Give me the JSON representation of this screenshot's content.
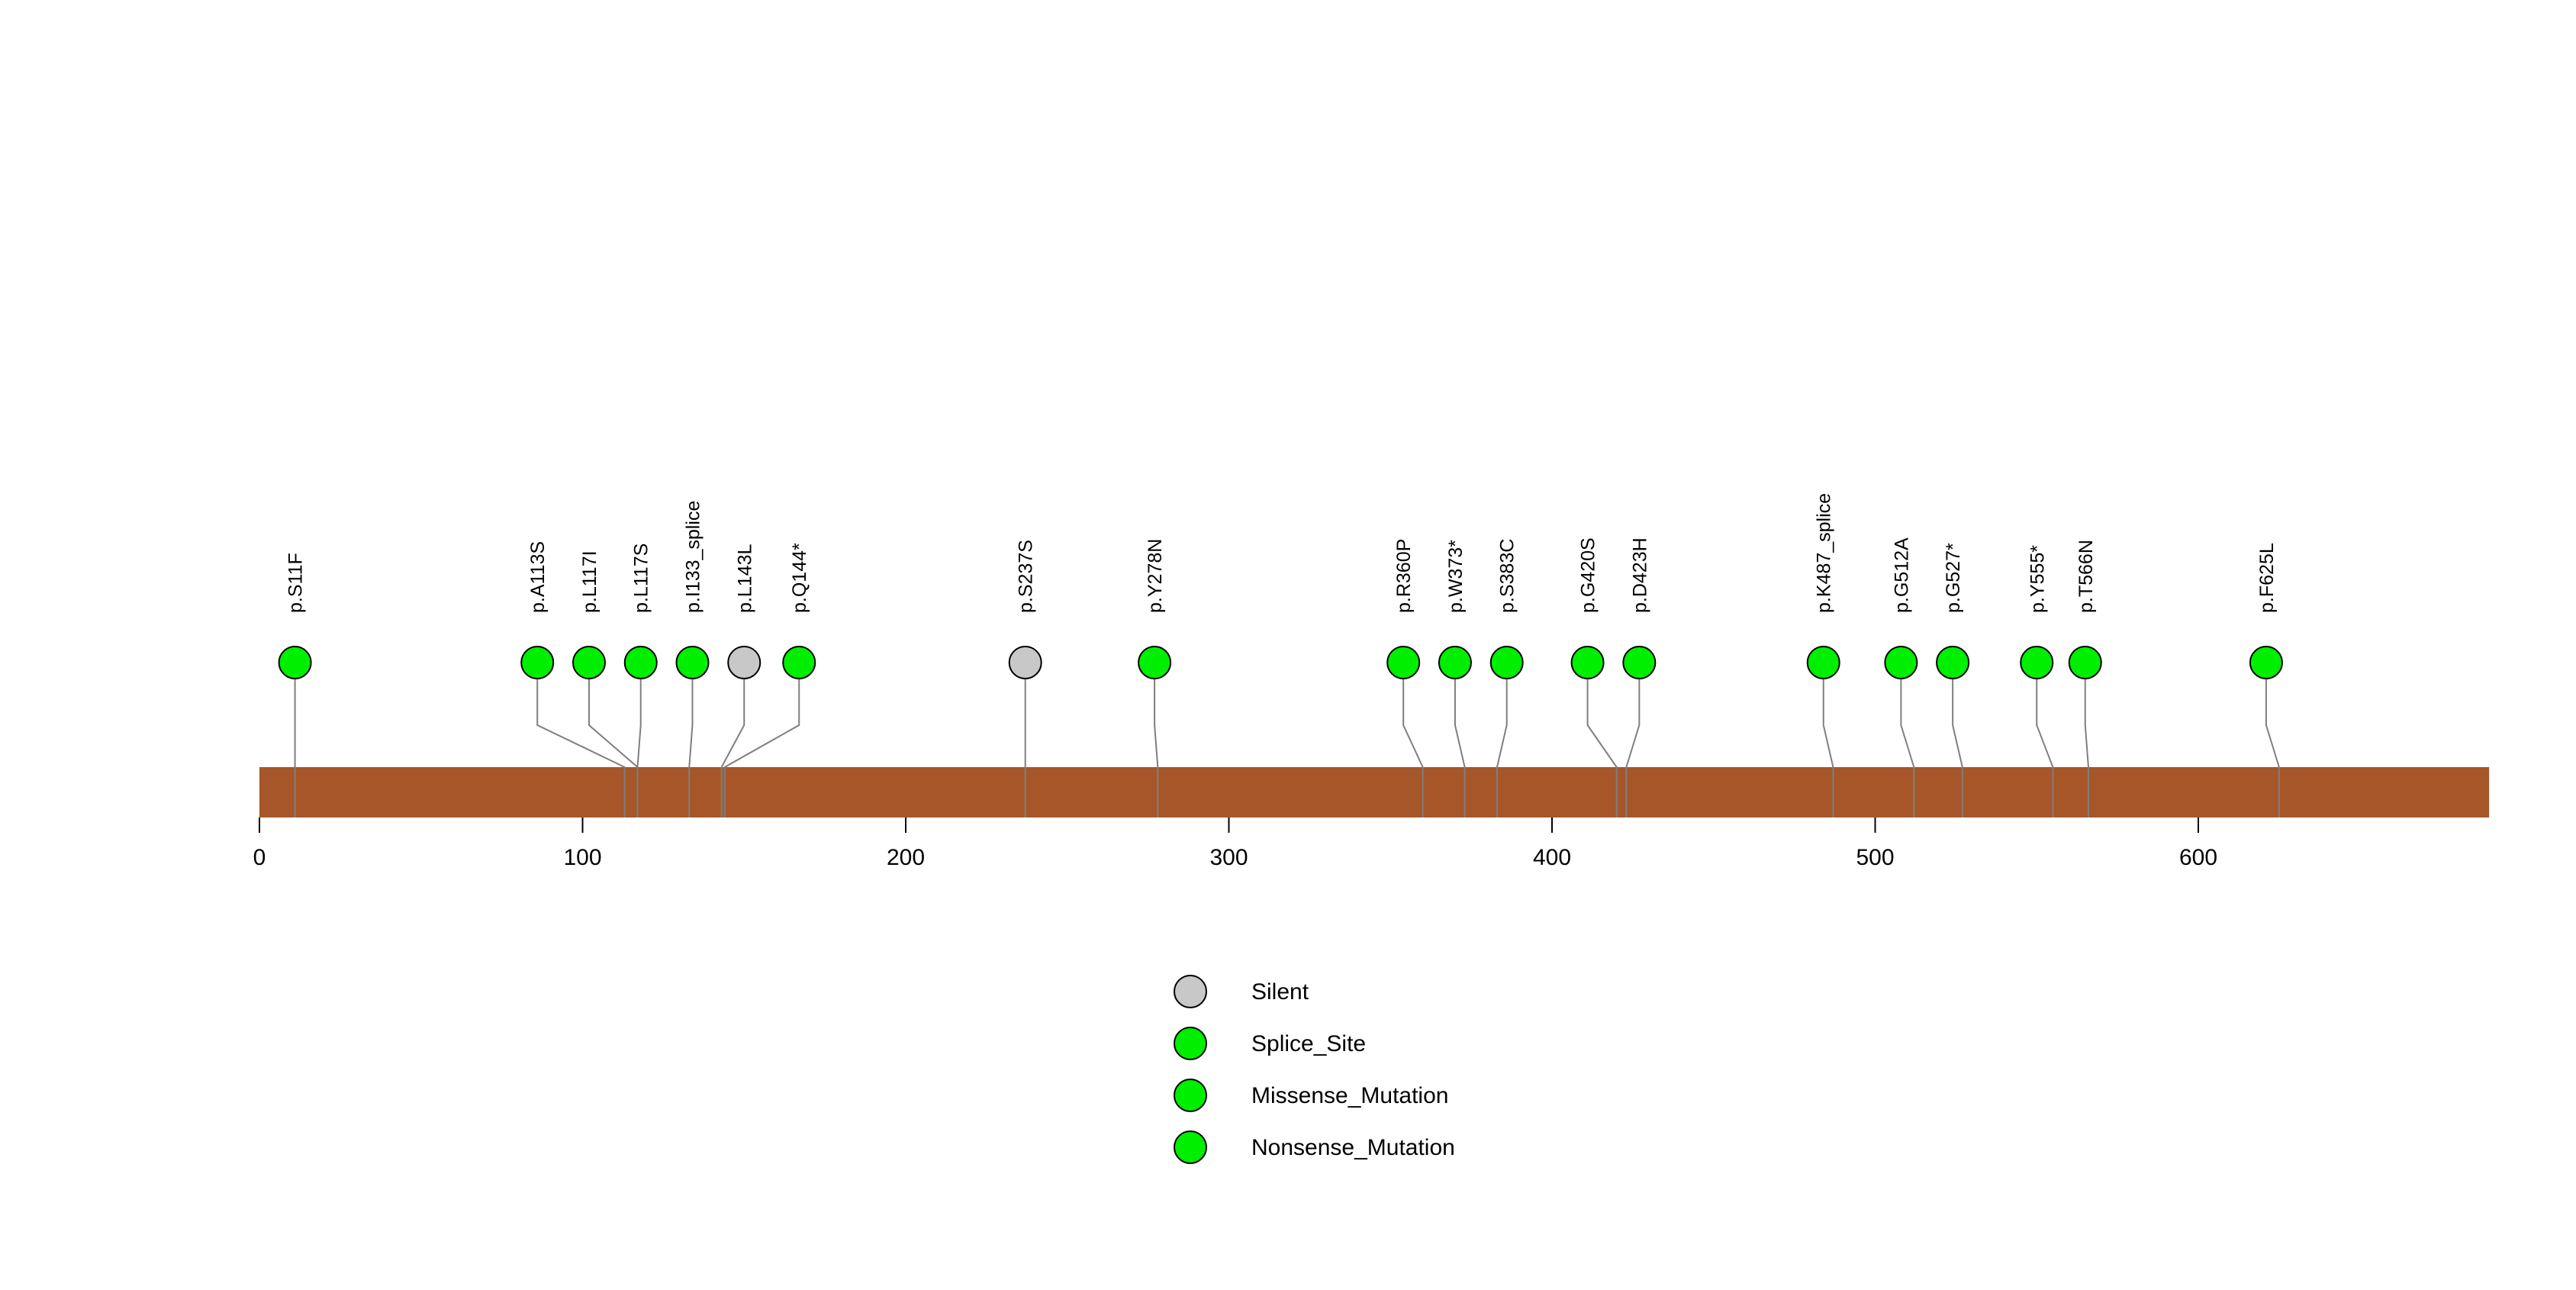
{
  "chart_data": {
    "type": "lollipop",
    "title": "",
    "xlabel": "",
    "ylabel": "",
    "protein_length": 690,
    "axis_ticks": [
      0,
      100,
      200,
      300,
      400,
      500,
      600
    ],
    "colors": {
      "Silent": "#C8C8C8",
      "Splice_Site": "#00EE00",
      "Missense_Mutation": "#00EE00",
      "Nonsense_Mutation": "#00EE00",
      "protein_bar": "#A65628",
      "stem": "#7F7F7F",
      "circle_outline": "#000000"
    },
    "legend": [
      {
        "label": "Silent",
        "type": "Silent"
      },
      {
        "label": "Splice_Site",
        "type": "Splice_Site"
      },
      {
        "label": "Missense_Mutation",
        "type": "Missense_Mutation"
      },
      {
        "label": "Nonsense_Mutation",
        "type": "Nonsense_Mutation"
      }
    ],
    "mutations": [
      {
        "label": "p.S11F",
        "aa": 11,
        "display_aa": 11,
        "type": "Missense_Mutation"
      },
      {
        "label": "p.A113S",
        "aa": 113,
        "display_aa": 86,
        "type": "Missense_Mutation"
      },
      {
        "label": "p.L117I",
        "aa": 117,
        "display_aa": 102,
        "type": "Missense_Mutation"
      },
      {
        "label": "p.L117S",
        "aa": 117,
        "display_aa": 118,
        "type": "Missense_Mutation"
      },
      {
        "label": "p.I133_splice",
        "aa": 133,
        "display_aa": 134,
        "type": "Splice_Site"
      },
      {
        "label": "p.L143L",
        "aa": 143,
        "display_aa": 150,
        "type": "Silent"
      },
      {
        "label": "p.Q144*",
        "aa": 144,
        "display_aa": 167,
        "type": "Nonsense_Mutation"
      },
      {
        "label": "p.S237S",
        "aa": 237,
        "display_aa": 237,
        "type": "Silent"
      },
      {
        "label": "p.Y278N",
        "aa": 278,
        "display_aa": 277,
        "type": "Missense_Mutation"
      },
      {
        "label": "p.R360P",
        "aa": 360,
        "display_aa": 354,
        "type": "Missense_Mutation"
      },
      {
        "label": "p.W373*",
        "aa": 373,
        "display_aa": 370,
        "type": "Nonsense_Mutation"
      },
      {
        "label": "p.S383C",
        "aa": 383,
        "display_aa": 386,
        "type": "Missense_Mutation"
      },
      {
        "label": "p.G420S",
        "aa": 420,
        "display_aa": 411,
        "type": "Missense_Mutation"
      },
      {
        "label": "p.D423H",
        "aa": 423,
        "display_aa": 427,
        "type": "Missense_Mutation"
      },
      {
        "label": "p.K487_splice",
        "aa": 487,
        "display_aa": 484,
        "type": "Splice_Site"
      },
      {
        "label": "p.G512A",
        "aa": 512,
        "display_aa": 508,
        "type": "Missense_Mutation"
      },
      {
        "label": "p.G527*",
        "aa": 527,
        "display_aa": 524,
        "type": "Nonsense_Mutation"
      },
      {
        "label": "p.Y555*",
        "aa": 555,
        "display_aa": 550,
        "type": "Nonsense_Mutation"
      },
      {
        "label": "p.T566N",
        "aa": 566,
        "display_aa": 565,
        "type": "Missense_Mutation"
      },
      {
        "label": "p.F625L",
        "aa": 625,
        "display_aa": 621,
        "type": "Missense_Mutation"
      }
    ]
  }
}
